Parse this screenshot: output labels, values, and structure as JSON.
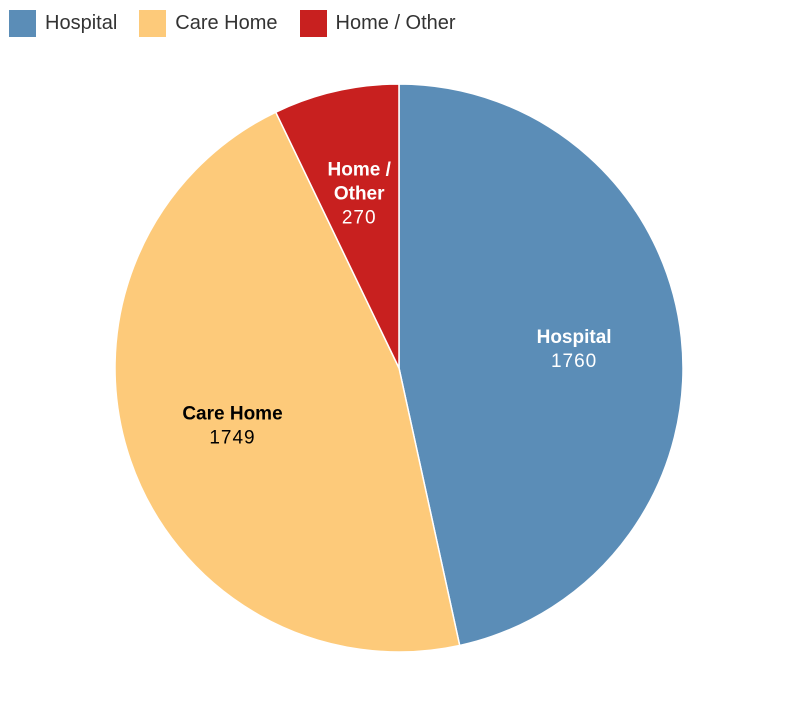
{
  "chart_data": {
    "type": "pie",
    "title": "",
    "legend_position": "top-left",
    "slices": [
      {
        "label": "Hospital",
        "value": 1760,
        "color": "#5b8db7",
        "label_color": "#ffffff"
      },
      {
        "label": "Care Home",
        "value": 1749,
        "color": "#fdca7a",
        "label_color": "#000000"
      },
      {
        "label": "Home / Other",
        "value": 270,
        "color": "#c8201f",
        "label_color": "#ffffff"
      }
    ],
    "legend": [
      {
        "label": "Hospital",
        "color": "#5b8db7"
      },
      {
        "label": "Care Home",
        "color": "#fdca7a"
      },
      {
        "label": "Home / Other",
        "color": "#c8201f"
      }
    ],
    "data_labels": [
      {
        "name_lines": [
          "Hospital"
        ],
        "value": "1760"
      },
      {
        "name_lines": [
          "Care Home"
        ],
        "value": "1749"
      },
      {
        "name_lines": [
          "Home /",
          "Other"
        ],
        "value": "270"
      }
    ]
  }
}
